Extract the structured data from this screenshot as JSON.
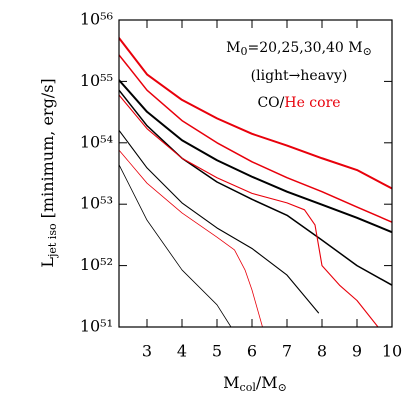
{
  "chart_data": {
    "type": "line",
    "xlabel": [
      "M",
      "col",
      "/M",
      "⊙"
    ],
    "ylabel": [
      "L",
      "jet iso",
      " [minimum, erg/s]"
    ],
    "annotation": {
      "line1": [
        "M",
        "0",
        "=20,25,30,40 M",
        "⊙"
      ],
      "line2": "(light→heavy)",
      "line3": [
        {
          "text": "CO",
          "color": "#000000"
        },
        {
          "text": "/",
          "color": "#000000"
        },
        {
          "text": "He core",
          "color": "#e8000b"
        }
      ]
    },
    "log_y": true,
    "xlim": [
      2.2,
      10
    ],
    "ylim": [
      1e+51,
      1e+56
    ],
    "xticks": [
      3,
      4,
      5,
      6,
      7,
      8,
      9,
      10
    ],
    "yticks": [
      {
        "value": 1e+51,
        "label": "10⁵¹"
      },
      {
        "value": 1e+52,
        "label": "10⁵²"
      },
      {
        "value": 1e+53,
        "label": "10⁵³"
      },
      {
        "value": 1e+54,
        "label": "10⁵⁴"
      },
      {
        "value": 1e+55,
        "label": "10⁵⁵"
      },
      {
        "value": 1e+56,
        "label": "10⁵⁶"
      }
    ],
    "series": [
      {
        "color": "#000000",
        "x": [
          2.2,
          3,
          4,
          5,
          5.4
        ],
        "values": [
          4.4e+53,
          5.5e+52,
          8.5e+51,
          2.3e+51,
          1e+51
        ]
      },
      {
        "color": "#000000",
        "x": [
          2.2,
          3,
          4,
          5,
          6,
          7,
          7.9
        ],
        "values": [
          1.6e+54,
          3.9e+53,
          1.05e+53,
          4.1e+52,
          1.9e+52,
          7e+51,
          1.7e+51
        ]
      },
      {
        "color": "#000000",
        "x": [
          2.2,
          3,
          4,
          5,
          6,
          7,
          8,
          9,
          10
        ],
        "values": [
          7.2e+54,
          1.9e+54,
          5.6e+53,
          2.3e+53,
          1.2e+53,
          6.6e+52,
          2.6e+52,
          1e+52,
          4.8e+51
        ]
      },
      {
        "color": "#000000",
        "x": [
          2.2,
          3,
          4,
          5,
          6,
          7,
          8,
          9,
          10
        ],
        "values": [
          1.05e+55,
          3.2e+54,
          1.1e+54,
          5.2e+53,
          2.8e+53,
          1.6e+53,
          9.8e+52,
          6e+52,
          3.5e+52
        ]
      },
      {
        "color": "#e8000b",
        "x": [
          2.2,
          3,
          4,
          5,
          5.5,
          5.8,
          6,
          6.3
        ],
        "values": [
          7.6e+53,
          2.2e+53,
          7.2e+52,
          2.9e+52,
          1.8e+52,
          8.5e+51,
          4e+51,
          1e+51
        ]
      },
      {
        "color": "#e8000b",
        "x": [
          2.2,
          3,
          4,
          5,
          6,
          7,
          7.5,
          7.8,
          8,
          8.5,
          9,
          9.6
        ],
        "values": [
          6e+54,
          1.7e+54,
          5.6e+53,
          2.7e+53,
          1.5e+53,
          1.05e+53,
          8.1e+52,
          4.6e+52,
          1e+52,
          4.8e+51,
          2.7e+51,
          1e+51
        ]
      },
      {
        "color": "#e8000b",
        "x": [
          2.2,
          3,
          4,
          5,
          6,
          7,
          8,
          9,
          10
        ],
        "values": [
          2.7e+55,
          7.2e+54,
          2.3e+54,
          1e+54,
          4.9e+53,
          2.7e+53,
          1.6e+53,
          9e+52,
          5.1e+52
        ]
      },
      {
        "color": "#e8000b",
        "x": [
          2.2,
          3,
          4,
          5,
          6,
          7,
          8,
          9,
          10
        ],
        "values": [
          5.1e+55,
          1.3e+55,
          5e+54,
          2.5e+54,
          1.4e+54,
          9e+53,
          5.6e+53,
          3.6e+53,
          1.8e+53
        ]
      }
    ]
  }
}
